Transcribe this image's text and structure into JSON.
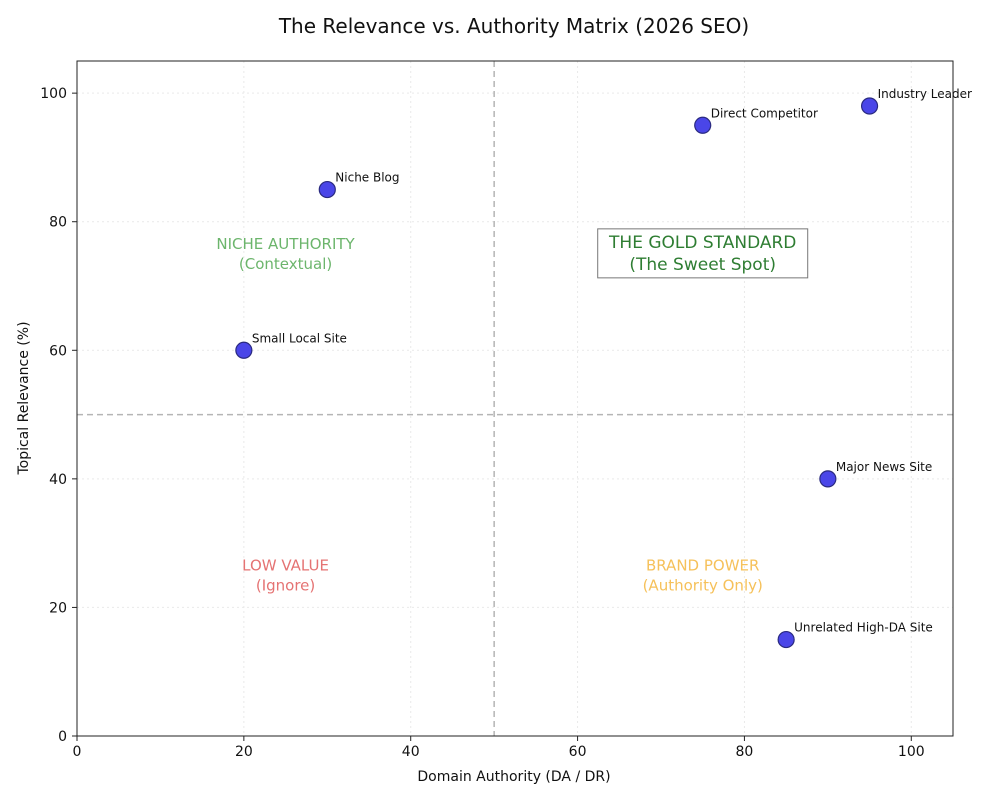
{
  "chart_data": {
    "type": "scatter",
    "title": "The Relevance vs. Authority Matrix (2026 SEO)",
    "xlabel": "Domain Authority (DA / DR)",
    "ylabel": "Topical Relevance (%)",
    "xlim": [
      0,
      105
    ],
    "ylim": [
      0,
      105
    ],
    "xticks": [
      0,
      20,
      40,
      60,
      80,
      100
    ],
    "yticks": [
      0,
      20,
      40,
      60,
      80,
      100
    ],
    "grid": true,
    "reference_lines": {
      "x": 50,
      "y": 50
    },
    "point_color": "#4a46e8",
    "point_edge_color": "#2a2a80",
    "points": [
      {
        "label": "Niche Blog",
        "x": 30,
        "y": 85
      },
      {
        "label": "Small Local Site",
        "x": 20,
        "y": 60
      },
      {
        "label": "Direct Competitor",
        "x": 75,
        "y": 95
      },
      {
        "label": "Industry Leader",
        "x": 95,
        "y": 98
      },
      {
        "label": "Major News Site",
        "x": 90,
        "y": 40
      },
      {
        "label": "Unrelated High-DA Site",
        "x": 85,
        "y": 15
      }
    ],
    "quadrants": [
      {
        "id": "niche-authority",
        "lines": [
          "NICHE AUTHORITY",
          "(Contextual)"
        ],
        "x": 25,
        "y": 75,
        "color": "#6cb56c",
        "boxed": false
      },
      {
        "id": "gold-standard",
        "lines": [
          "THE GOLD STANDARD",
          "(The Sweet Spot)"
        ],
        "x": 75,
        "y": 75,
        "color": "#2e7d32",
        "boxed": true
      },
      {
        "id": "low-value",
        "lines": [
          "LOW VALUE",
          "(Ignore)"
        ],
        "x": 25,
        "y": 25,
        "color": "#e57373",
        "boxed": false
      },
      {
        "id": "brand-power",
        "lines": [
          "BRAND POWER",
          "(Authority Only)"
        ],
        "x": 75,
        "y": 25,
        "color": "#f6c15a",
        "boxed": false
      }
    ]
  }
}
